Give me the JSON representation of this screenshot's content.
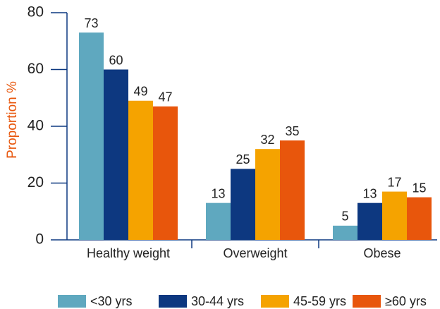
{
  "chart_data": {
    "type": "bar",
    "y_label": "Proportion %",
    "categories": [
      "Healthy weight",
      "Overweight",
      "Obese"
    ],
    "series": [
      {
        "name": "<30 yrs",
        "color": "#5fa8bf",
        "values": [
          73,
          13,
          5
        ]
      },
      {
        "name": "30-44 yrs",
        "color": "#0d3880",
        "values": [
          60,
          25,
          13
        ]
      },
      {
        "name": "45-59 yrs",
        "color": "#f5a300",
        "values": [
          49,
          32,
          17
        ]
      },
      {
        "name": "≥60 yrs",
        "color": "#e8560c",
        "values": [
          47,
          35,
          15
        ]
      }
    ],
    "ylim": [
      0,
      80
    ],
    "yticks": [
      0,
      20,
      40,
      60,
      80
    ],
    "legend": "bottom"
  }
}
